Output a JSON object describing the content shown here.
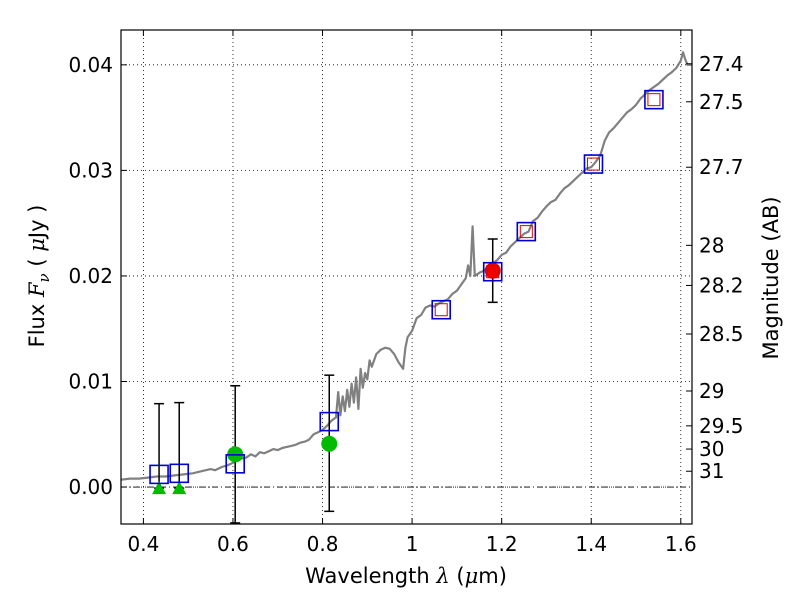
{
  "chart_data": {
    "type": "scatter",
    "xlabel_text": "Wavelength",
    "xlabel_symbol": "λ",
    "xlabel_unit_open": "(",
    "xlabel_unit_mu": "μ",
    "xlabel_unit_rest": "m)",
    "ylabel_text": "Flux",
    "ylabel_symbol": "F",
    "ylabel_subscript": "ν",
    "ylabel_unit_open": "(",
    "ylabel_unit_mu": "μ",
    "ylabel_unit_rest": "Jy",
    "ylabel_unit_close": ")",
    "y2label": "Magnitude (AB)",
    "xlim": [
      0.35,
      1.625
    ],
    "ylim": [
      -0.0035,
      0.0433
    ],
    "grid": true,
    "x_ticks": [
      {
        "value": 0.4,
        "label": "0.4"
      },
      {
        "value": 0.6,
        "label": "0.6"
      },
      {
        "value": 0.8,
        "label": "0.8"
      },
      {
        "value": 1.0,
        "label": "1"
      },
      {
        "value": 1.2,
        "label": "1.2"
      },
      {
        "value": 1.4,
        "label": "1.4"
      },
      {
        "value": 1.6,
        "label": "1.6"
      }
    ],
    "y_ticks": [
      {
        "value": 0.0,
        "label": "0.00"
      },
      {
        "value": 0.01,
        "label": "0.01"
      },
      {
        "value": 0.02,
        "label": "0.02"
      },
      {
        "value": 0.03,
        "label": "0.03"
      },
      {
        "value": 0.04,
        "label": "0.04"
      }
    ],
    "magnitude_ticks": [
      {
        "value": 0.0401,
        "label": "27.4"
      },
      {
        "value": 0.0365,
        "label": "27.5"
      },
      {
        "value": 0.0303,
        "label": "27.7"
      },
      {
        "value": 0.0229,
        "label": "28"
      },
      {
        "value": 0.0191,
        "label": "28.2"
      },
      {
        "value": 0.0145,
        "label": "28.5"
      },
      {
        "value": 0.0091,
        "label": "29"
      },
      {
        "value": 0.0058,
        "label": "29.5"
      },
      {
        "value": 0.0036,
        "label": "30"
      },
      {
        "value": 0.0015,
        "label": "31"
      }
    ],
    "colors": {
      "spectrum": "#808080",
      "model_square": "#0000cc",
      "inner_square": "#dd0000",
      "detection": "#00bb00",
      "highlight": "#ee0000",
      "errorbar": "#000000",
      "grid": "#000000"
    },
    "spectrum": [
      [
        0.35,
        0.0007
      ],
      [
        0.37,
        0.0008
      ],
      [
        0.39,
        0.0008
      ],
      [
        0.41,
        0.0009
      ],
      [
        0.43,
        0.001
      ],
      [
        0.45,
        0.001
      ],
      [
        0.47,
        0.0011
      ],
      [
        0.49,
        0.0012
      ],
      [
        0.51,
        0.0013
      ],
      [
        0.53,
        0.0015
      ],
      [
        0.55,
        0.0017
      ],
      [
        0.56,
        0.0016
      ],
      [
        0.575,
        0.0019
      ],
      [
        0.59,
        0.0021
      ],
      [
        0.6,
        0.0023
      ],
      [
        0.61,
        0.0026
      ],
      [
        0.62,
        0.0027
      ],
      [
        0.63,
        0.0028
      ],
      [
        0.64,
        0.0031
      ],
      [
        0.65,
        0.0029
      ],
      [
        0.66,
        0.0033
      ],
      [
        0.67,
        0.0032
      ],
      [
        0.68,
        0.0034
      ],
      [
        0.69,
        0.0036
      ],
      [
        0.7,
        0.0035
      ],
      [
        0.71,
        0.0037
      ],
      [
        0.72,
        0.0038
      ],
      [
        0.73,
        0.0039
      ],
      [
        0.74,
        0.004
      ],
      [
        0.75,
        0.0042
      ],
      [
        0.76,
        0.0043
      ],
      [
        0.77,
        0.0045
      ],
      [
        0.78,
        0.005
      ],
      [
        0.79,
        0.0052
      ],
      [
        0.8,
        0.0054
      ],
      [
        0.81,
        0.0058
      ],
      [
        0.82,
        0.0063
      ],
      [
        0.83,
        0.0066
      ],
      [
        0.835,
        0.009
      ],
      [
        0.84,
        0.0068
      ],
      [
        0.845,
        0.0086
      ],
      [
        0.85,
        0.0072
      ],
      [
        0.855,
        0.0092
      ],
      [
        0.86,
        0.0076
      ],
      [
        0.865,
        0.0098
      ],
      [
        0.87,
        0.008
      ],
      [
        0.875,
        0.0104
      ],
      [
        0.88,
        0.0074
      ],
      [
        0.885,
        0.0112
      ],
      [
        0.89,
        0.0094
      ],
      [
        0.895,
        0.0108
      ],
      [
        0.9,
        0.0102
      ],
      [
        0.905,
        0.012
      ],
      [
        0.91,
        0.0114
      ],
      [
        0.92,
        0.0126
      ],
      [
        0.93,
        0.013
      ],
      [
        0.94,
        0.0132
      ],
      [
        0.95,
        0.0131
      ],
      [
        0.96,
        0.0126
      ],
      [
        0.97,
        0.0118
      ],
      [
        0.98,
        0.0112
      ],
      [
        0.985,
        0.0132
      ],
      [
        0.99,
        0.0142
      ],
      [
        1.0,
        0.0148
      ],
      [
        1.01,
        0.016
      ],
      [
        1.02,
        0.0163
      ],
      [
        1.03,
        0.017
      ],
      [
        1.04,
        0.0172
      ],
      [
        1.05,
        0.0171
      ],
      [
        1.06,
        0.0174
      ],
      [
        1.07,
        0.0176
      ],
      [
        1.08,
        0.0178
      ],
      [
        1.09,
        0.0183
      ],
      [
        1.1,
        0.0186
      ],
      [
        1.11,
        0.0192
      ],
      [
        1.12,
        0.0198
      ],
      [
        1.125,
        0.021
      ],
      [
        1.13,
        0.02
      ],
      [
        1.135,
        0.0247
      ],
      [
        1.14,
        0.02
      ],
      [
        1.15,
        0.0203
      ],
      [
        1.16,
        0.0205
      ],
      [
        1.17,
        0.0208
      ],
      [
        1.18,
        0.0212
      ],
      [
        1.19,
        0.0215
      ],
      [
        1.2,
        0.022
      ],
      [
        1.21,
        0.0222
      ],
      [
        1.22,
        0.0228
      ],
      [
        1.23,
        0.0232
      ],
      [
        1.24,
        0.0236
      ],
      [
        1.25,
        0.024
      ],
      [
        1.26,
        0.0242
      ],
      [
        1.27,
        0.0252
      ],
      [
        1.28,
        0.0255
      ],
      [
        1.29,
        0.0261
      ],
      [
        1.3,
        0.0266
      ],
      [
        1.31,
        0.027
      ],
      [
        1.32,
        0.0272
      ],
      [
        1.33,
        0.0278
      ],
      [
        1.34,
        0.0283
      ],
      [
        1.35,
        0.0286
      ],
      [
        1.36,
        0.029
      ],
      [
        1.37,
        0.0294
      ],
      [
        1.38,
        0.0298
      ],
      [
        1.39,
        0.0302
      ],
      [
        1.4,
        0.0303
      ],
      [
        1.41,
        0.0308
      ],
      [
        1.42,
        0.0314
      ],
      [
        1.43,
        0.0328
      ],
      [
        1.44,
        0.0336
      ],
      [
        1.45,
        0.034
      ],
      [
        1.46,
        0.0345
      ],
      [
        1.47,
        0.035
      ],
      [
        1.48,
        0.0355
      ],
      [
        1.49,
        0.0358
      ],
      [
        1.5,
        0.0362
      ],
      [
        1.51,
        0.0368
      ],
      [
        1.52,
        0.0372
      ],
      [
        1.53,
        0.0376
      ],
      [
        1.54,
        0.0379
      ],
      [
        1.55,
        0.0382
      ],
      [
        1.56,
        0.0386
      ],
      [
        1.57,
        0.039
      ],
      [
        1.58,
        0.0393
      ],
      [
        1.59,
        0.0397
      ],
      [
        1.6,
        0.0404
      ],
      [
        1.605,
        0.0412
      ],
      [
        1.61,
        0.0405
      ],
      [
        1.615,
        0.04
      ],
      [
        1.625,
        0.04
      ]
    ],
    "model_squares": [
      {
        "x": 0.435,
        "y": 0.0012
      },
      {
        "x": 0.48,
        "y": 0.0013
      },
      {
        "x": 0.605,
        "y": 0.0022
      },
      {
        "x": 0.815,
        "y": 0.0062
      },
      {
        "x": 1.065,
        "y": 0.0168
      },
      {
        "x": 1.18,
        "y": 0.0204
      },
      {
        "x": 1.255,
        "y": 0.0242
      },
      {
        "x": 1.405,
        "y": 0.0306
      },
      {
        "x": 1.54,
        "y": 0.0367
      }
    ],
    "inner_squares": [
      {
        "x": 1.065,
        "y": 0.0168
      },
      {
        "x": 1.18,
        "y": 0.0204
      },
      {
        "x": 1.255,
        "y": 0.0242
      },
      {
        "x": 1.405,
        "y": 0.0306
      },
      {
        "x": 1.54,
        "y": 0.0367
      }
    ],
    "upper_limits": [
      {
        "x": 0.435,
        "y": -0.0001
      },
      {
        "x": 0.48,
        "y": -0.0001
      }
    ],
    "detections": [
      {
        "x": 0.605,
        "y": 0.0031
      },
      {
        "x": 0.815,
        "y": 0.0041
      }
    ],
    "highlight_point": {
      "x": 1.18,
      "y": 0.0205
    },
    "error_bars": [
      {
        "x": 0.435,
        "low": -0.0001,
        "high": 0.0079
      },
      {
        "x": 0.48,
        "low": -0.0001,
        "high": 0.008
      },
      {
        "x": 0.605,
        "low": -0.0034,
        "high": 0.0096
      },
      {
        "x": 0.815,
        "low": -0.0023,
        "high": 0.0106
      },
      {
        "x": 1.18,
        "low": 0.0175,
        "high": 0.0235
      }
    ]
  }
}
